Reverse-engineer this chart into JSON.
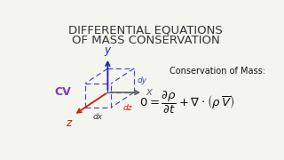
{
  "title_line1": "DIFFERENTIAL EQUATIONS",
  "title_line2": "OF MASS CONSERVATION",
  "title_fontsize": 9.5,
  "title_color": "#333333",
  "bg_color": "#f5f5f0",
  "cv_label": "CV",
  "cv_color": "#8833cc",
  "axis_color_x": "#666666",
  "axis_color_y": "#2222bb",
  "axis_color_z": "#cc2200",
  "cube_color": "#4444cc",
  "dx_label": "dx",
  "dy_label": "dy",
  "dz_label": "dz",
  "conservation_label": "Conservation of Mass:",
  "cons_fontsize": 7.0,
  "eq_fontsize": 9.5
}
